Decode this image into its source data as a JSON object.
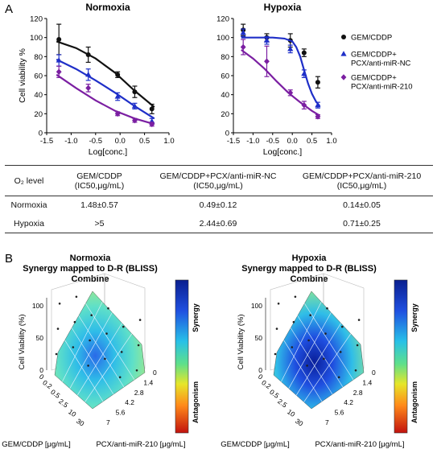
{
  "panel_a": {
    "letter": "A",
    "legend": [
      {
        "lines": [
          "GEM/CDDP"
        ],
        "color": "#111111",
        "marker": "circle"
      },
      {
        "lines": [
          "GEM/CDDP+",
          "PCX/anti-miR-NC"
        ],
        "color": "#1f2fc8",
        "marker": "triangle"
      },
      {
        "lines": [
          "GEM/CDDP+",
          "PCX/anti-miR-210"
        ],
        "color": "#7b1fa2",
        "marker": "diamond"
      }
    ]
  },
  "chart_data": [
    {
      "type": "line",
      "title": "Normoxia",
      "xlabel": "Log[conc.]",
      "ylabel": "Cell viability %",
      "xlim": [
        -1.5,
        1.0
      ],
      "ylim": [
        0,
        120
      ],
      "xticks": [
        "-1.5",
        "-1.0",
        "-0.5",
        "0.0",
        "0.5",
        "1.0"
      ],
      "yticks": [
        "0",
        "20",
        "40",
        "60",
        "80",
        "100",
        "120"
      ],
      "series": [
        {
          "name": "GEM/CDDP",
          "color": "#111111",
          "marker": "circle",
          "x": [
            -1.25,
            -0.65,
            -0.05,
            0.3,
            0.65
          ],
          "y": [
            98,
            82,
            61,
            43,
            25
          ],
          "err": [
            16,
            8,
            3,
            6,
            5
          ],
          "curve_x": [
            -1.3,
            -0.9,
            -0.5,
            -0.1,
            0.3,
            0.7
          ],
          "curve_y": [
            96,
            89,
            78,
            63,
            44,
            27
          ]
        },
        {
          "name": "GEM/CDDP+PCX/anti-miR-NC",
          "color": "#1f2fc8",
          "marker": "triangle",
          "x": [
            -1.25,
            -0.65,
            -0.05,
            0.3,
            0.65
          ],
          "y": [
            76,
            61,
            38,
            28,
            12
          ],
          "err": [
            6,
            6,
            4,
            3,
            3
          ],
          "curve_x": [
            -1.3,
            -0.9,
            -0.5,
            -0.1,
            0.3,
            0.7
          ],
          "curve_y": [
            77,
            67,
            55,
            42,
            28,
            15
          ]
        },
        {
          "name": "GEM/CDDP+PCX/anti-miR-210",
          "color": "#7b1fa2",
          "marker": "diamond",
          "x": [
            -1.25,
            -0.65,
            -0.05,
            0.3,
            0.65
          ],
          "y": [
            64,
            47,
            20,
            13,
            9
          ],
          "err": [
            6,
            4,
            2,
            2,
            2
          ],
          "curve_x": [
            -1.3,
            -0.9,
            -0.5,
            -0.1,
            0.3,
            0.7
          ],
          "curve_y": [
            61,
            47,
            34,
            23,
            15,
            9
          ]
        }
      ]
    },
    {
      "type": "line",
      "title": "Hypoxia",
      "xlabel": "Log[conc.]",
      "ylabel": "",
      "xlim": [
        -1.5,
        1.0
      ],
      "ylim": [
        0,
        120
      ],
      "xticks": [
        "-1.5",
        "-1.0",
        "-0.5",
        "0.0",
        "0.5",
        "1.0"
      ],
      "yticks": [
        "0",
        "20",
        "40",
        "60",
        "80",
        "100",
        "120"
      ],
      "series": [
        {
          "name": "GEM/CDDP",
          "color": "#111111",
          "marker": "circle",
          "x": [
            -1.25,
            -0.65,
            -0.05,
            0.3,
            0.65
          ],
          "y": [
            108,
            100,
            97,
            84,
            53
          ],
          "err": [
            6,
            4,
            7,
            4,
            6
          ],
          "curve_x": [],
          "curve_y": []
        },
        {
          "name": "GEM/CDDP+PCX/anti-miR-NC",
          "color": "#1f2fc8",
          "marker": "triangle",
          "x": [
            -1.25,
            -0.65,
            -0.05,
            0.3,
            0.65
          ],
          "y": [
            105,
            97,
            88,
            62,
            29
          ],
          "err": [
            4,
            4,
            4,
            4,
            3
          ],
          "curve_x": [
            -1.3,
            -0.5,
            -0.2,
            0.0,
            0.1,
            0.2,
            0.3,
            0.4,
            0.5,
            0.6,
            0.7
          ],
          "curve_y": [
            100,
            100,
            99,
            96,
            90,
            80,
            66,
            52,
            41,
            33,
            28
          ]
        },
        {
          "name": "GEM/CDDP+PCX/anti-miR-210",
          "color": "#7b1fa2",
          "marker": "diamond",
          "x": [
            -1.25,
            -0.65,
            -0.05,
            0.3,
            0.65
          ],
          "y": [
            90,
            75,
            42,
            29,
            17
          ],
          "err": [
            8,
            16,
            3,
            4,
            2
          ],
          "curve_x": [
            -1.3,
            -1.0,
            -0.7,
            -0.4,
            -0.1,
            0.2,
            0.5,
            0.7
          ],
          "curve_y": [
            87,
            78,
            67,
            54,
            42,
            32,
            23,
            18
          ]
        }
      ]
    },
    {
      "type": "table",
      "columns": [
        {
          "main": "O₂ level",
          "sub": ""
        },
        {
          "main": "GEM/CDDP",
          "sub": "(IC50,μg/mL)"
        },
        {
          "main": "GEM/CDDP+PCX/anti-miR-NC",
          "sub": "(IC50,μg/mL)"
        },
        {
          "main": "GEM/CDDP+PCX/anti-miR-210",
          "sub": "(IC50,μg/mL)"
        }
      ],
      "rows": [
        [
          "Normoxia",
          "1.48±0.57",
          "0.49±0.12",
          "0.14±0.05"
        ],
        [
          "Hypoxia",
          ">5",
          "2.44±0.69",
          "0.71±0.25"
        ]
      ]
    }
  ],
  "panel_b": {
    "letter": "B",
    "plots": [
      {
        "titles": [
          "Normoxia",
          "Synergy mapped to D-R (BLISS)",
          "Combine"
        ],
        "zlabel": "Cell Viability (%)",
        "zticks": [
          "0",
          "50",
          "100"
        ],
        "gem_ticks": [
          "0",
          "0.2",
          "0.5",
          "2.5",
          "10",
          "30"
        ],
        "gem_label": "GEM/CDDP [μg/mL]",
        "pcx_ticks": [
          "0",
          "1.4",
          "2.8",
          "4.2",
          "5.6",
          "7"
        ],
        "pcx_label": "PCX/anti-miR-210 [μg/mL]",
        "colorbar_top": "Synergy",
        "colorbar_bottom": "Antagonism"
      },
      {
        "titles": [
          "Hypoxia",
          "Synergy mapped to D-R (BLISS)",
          "Combine"
        ],
        "zlabel": "Cell Viability (%)",
        "zticks": [
          "0",
          "50",
          "100"
        ],
        "gem_ticks": [
          "0",
          "0.2",
          "0.5",
          "2.5",
          "10",
          "30"
        ],
        "gem_label": "GEM/CDDP [μg/mL]",
        "pcx_ticks": [
          "0",
          "1.4",
          "2.8",
          "4.2",
          "5.6",
          "7"
        ],
        "pcx_label": "PCX/anti-miR-210 [μg/mL]",
        "colorbar_top": "Synergy",
        "colorbar_bottom": "Antagonism"
      }
    ]
  }
}
